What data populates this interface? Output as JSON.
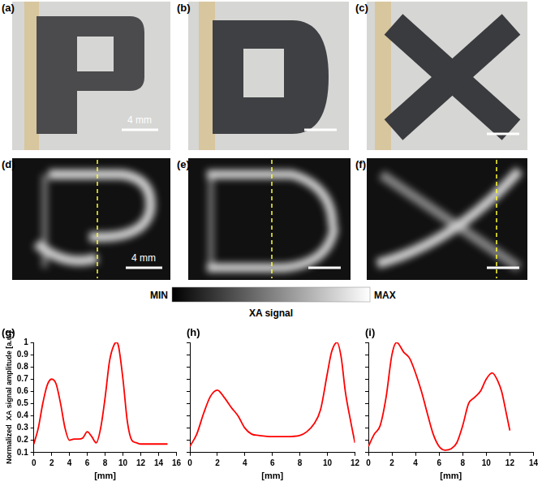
{
  "panels": {
    "photos": [
      {
        "label": "(a)",
        "scale_bar": "4 mm"
      },
      {
        "label": "(b)"
      },
      {
        "label": "(c)"
      }
    ],
    "images": [
      {
        "label": "(d)",
        "scale_bar": "4 mm"
      },
      {
        "label": "(e)"
      },
      {
        "label": "(f)"
      }
    ]
  },
  "colorbar": {
    "min_label": "MIN",
    "max_label": "MAX",
    "title": "XA signal"
  },
  "chart_data": [
    {
      "type": "line",
      "label": "(g)",
      "x_label": "[mm]",
      "y_label": "Normalized  XA signal amplitude [a.u.]",
      "x": [
        0,
        0.5,
        1,
        1.5,
        2,
        2.5,
        3,
        3.5,
        4,
        4.5,
        5,
        5.5,
        6,
        6.5,
        7,
        7.5,
        8,
        8.5,
        9,
        9.3,
        9.5,
        10,
        10.5,
        11,
        11.5,
        12,
        13,
        14,
        15
      ],
      "values": [
        0.17,
        0.3,
        0.5,
        0.65,
        0.7,
        0.66,
        0.5,
        0.3,
        0.2,
        0.21,
        0.21,
        0.22,
        0.27,
        0.23,
        0.18,
        0.3,
        0.55,
        0.85,
        0.98,
        1,
        0.97,
        0.7,
        0.35,
        0.2,
        0.18,
        0.17,
        0.17,
        0.17,
        0.17
      ],
      "color": "#ff0000",
      "xlim": [
        0,
        16
      ],
      "xticks": [
        0,
        2,
        4,
        6,
        8,
        10,
        12,
        14,
        16
      ],
      "ylim": [
        0.1,
        1
      ],
      "yticks": [
        0.1,
        0.2,
        0.3,
        0.4,
        0.5,
        0.6,
        0.7,
        0.8,
        0.9,
        1
      ],
      "grid": false
    },
    {
      "type": "line",
      "label": "(h)",
      "x_label": "[mm]",
      "x": [
        0,
        0.5,
        1,
        1.5,
        2,
        2.5,
        3,
        3.5,
        4,
        4.5,
        5,
        6,
        7,
        8,
        8.5,
        9,
        9.5,
        10,
        10.3,
        10.7,
        11,
        11.3,
        11.7,
        12
      ],
      "values": [
        0.15,
        0.25,
        0.42,
        0.56,
        0.61,
        0.55,
        0.47,
        0.4,
        0.3,
        0.25,
        0.24,
        0.23,
        0.23,
        0.24,
        0.27,
        0.33,
        0.45,
        0.75,
        0.92,
        1,
        0.88,
        0.6,
        0.35,
        0.18
      ],
      "color": "#ff0000",
      "xlim": [
        0,
        12
      ],
      "xticks": [
        0,
        2,
        4,
        6,
        8,
        10,
        12
      ],
      "ylim": [
        0.1,
        1
      ],
      "yticks": [
        0.1,
        0.2,
        0.3,
        0.4,
        0.5,
        0.6,
        0.7,
        0.8,
        0.9,
        1
      ],
      "grid": false,
      "tick_labels": "x"
    },
    {
      "type": "line",
      "label": "(i)",
      "x_label": "[mm]",
      "x": [
        0,
        0.5,
        1,
        1.5,
        2,
        2.4,
        3,
        3.5,
        4,
        4.5,
        5,
        5.5,
        6,
        6.5,
        7,
        7.5,
        8,
        8.5,
        9,
        9.5,
        10,
        10.5,
        11,
        11.3,
        11.7,
        12
      ],
      "values": [
        0.15,
        0.25,
        0.32,
        0.55,
        0.9,
        1,
        0.92,
        0.87,
        0.75,
        0.6,
        0.42,
        0.25,
        0.15,
        0.12,
        0.13,
        0.18,
        0.32,
        0.5,
        0.55,
        0.6,
        0.7,
        0.75,
        0.68,
        0.6,
        0.42,
        0.28
      ],
      "color": "#ff0000",
      "xlim": [
        0,
        14
      ],
      "xticks": [
        0,
        2,
        4,
        6,
        8,
        10,
        12,
        14
      ],
      "ylim": [
        0.1,
        1
      ],
      "yticks": [
        0.1,
        0.2,
        0.3,
        0.4,
        0.5,
        0.6,
        0.7,
        0.8,
        0.9,
        1
      ],
      "grid": false,
      "tick_labels": "x"
    }
  ]
}
